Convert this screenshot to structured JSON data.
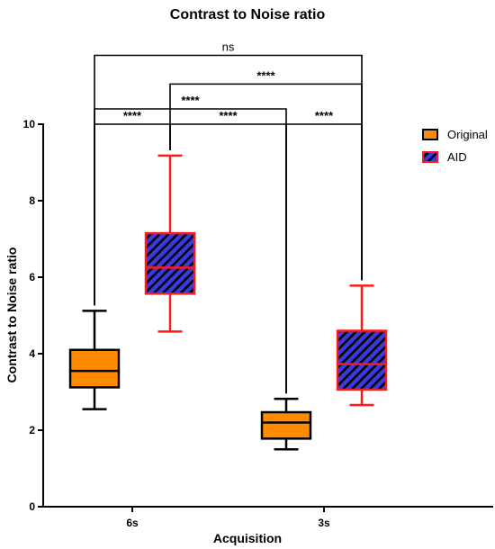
{
  "chart_data": {
    "type": "box",
    "title": "Contrast to Noise ratio",
    "xlabel": "Acquisition",
    "ylabel": "Contrast to Noise ratio",
    "ylim": [
      0,
      10
    ],
    "yticks": [
      0,
      2,
      4,
      6,
      8,
      10
    ],
    "categories": [
      "6s",
      "3s"
    ],
    "grid": false,
    "legend_position": "top-right",
    "series": [
      {
        "name": "Original",
        "color": "#ff8c00",
        "edge_color": "#000000",
        "pattern": "solid",
        "boxes": [
          {
            "category": "6s",
            "min": 2.55,
            "q1": 3.12,
            "median": 3.55,
            "q3": 4.1,
            "max": 5.12
          },
          {
            "category": "3s",
            "min": 1.5,
            "q1": 1.78,
            "median": 2.2,
            "q3": 2.47,
            "max": 2.82
          }
        ]
      },
      {
        "name": "AID",
        "color": "#3a3ae0",
        "edge_color": "#ff1a1a",
        "pattern": "diagonal-hatch",
        "boxes": [
          {
            "category": "6s",
            "min": 4.58,
            "q1": 5.57,
            "median": 6.25,
            "q3": 7.15,
            "max": 9.18
          },
          {
            "category": "3s",
            "min": 2.66,
            "q1": 3.06,
            "median": 3.73,
            "q3": 4.6,
            "max": 5.78
          }
        ]
      }
    ],
    "significance": [
      {
        "from": [
          "6s",
          "Original"
        ],
        "to": [
          "6s",
          "AID"
        ],
        "label": "****",
        "level": 10.0
      },
      {
        "from": [
          "3s",
          "Original"
        ],
        "to": [
          "3s",
          "AID"
        ],
        "label": "****",
        "level": 10.0
      },
      {
        "from": [
          "6s",
          "AID"
        ],
        "to": [
          "3s",
          "Original"
        ],
        "label": "****",
        "level": 10.0
      },
      {
        "from": [
          "6s",
          "Original"
        ],
        "to": [
          "3s",
          "Original"
        ],
        "label": "****",
        "level": 10.4
      },
      {
        "from": [
          "6s",
          "AID"
        ],
        "to": [
          "3s",
          "AID"
        ],
        "label": "****",
        "level": 11.05
      },
      {
        "from": [
          "6s",
          "Original"
        ],
        "to": [
          "3s",
          "AID"
        ],
        "label": "ns",
        "level": 11.8
      }
    ]
  }
}
